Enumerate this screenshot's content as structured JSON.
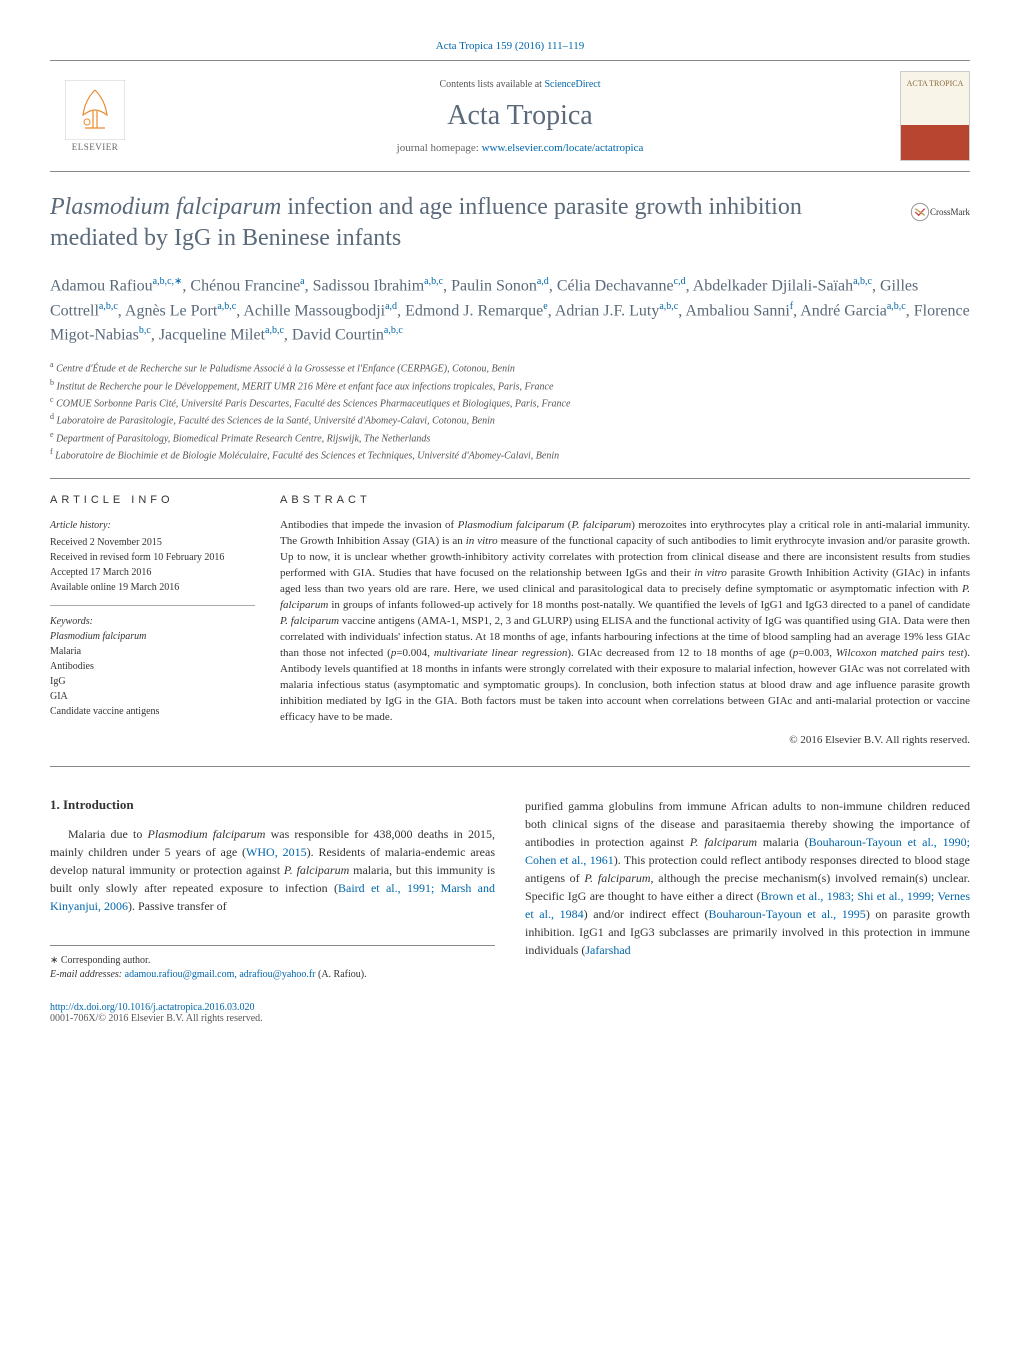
{
  "journal_ref": "Acta Tropica 159 (2016) 111–119",
  "header": {
    "contents_prefix": "Contents lists available at ",
    "contents_link": "ScienceDirect",
    "journal_name": "Acta Tropica",
    "homepage_prefix": "journal homepage: ",
    "homepage_url": "www.elsevier.com/locate/actatropica",
    "publisher": "ELSEVIER",
    "cover_title": "ACTA TROPICA"
  },
  "crossmark": "CrossMark",
  "title_html": "<span class='italic'>Plasmodium falciparum</span> infection and age influence parasite growth inhibition mediated by IgG in Beninese infants",
  "authors_html": "Adamou Rafiou<span class='sup'>a,b,c,∗</span>, Chénou Francine<span class='sup'>a</span>, Sadissou Ibrahim<span class='sup'>a,b,c</span>, Paulin Sonon<span class='sup'>a,d</span>, Célia Dechavanne<span class='sup'>c,d</span>, Abdelkader Djilali-Saïah<span class='sup'>a,b,c</span>, Gilles Cottrell<span class='sup'>a,b,c</span>, Agnès Le Port<span class='sup'>a,b,c</span>, Achille Massougbodji<span class='sup'>a,d</span>, Edmond J. Remarque<span class='sup'>e</span>, Adrian J.F. Luty<span class='sup'>a,b,c</span>, Ambaliou Sanni<span class='sup'>f</span>, André Garcia<span class='sup'>a,b,c</span>, Florence Migot-Nabias<span class='sup'>b,c</span>, Jacqueline Milet<span class='sup'>a,b,c</span>, David Courtin<span class='sup'>a,b,c</span>",
  "affiliations": [
    {
      "sup": "a",
      "text": "Centre d'Étude et de Recherche sur le Paludisme Associé à la Grossesse et l'Enfance (CERPAGE), Cotonou, Benin"
    },
    {
      "sup": "b",
      "text": "Institut de Recherche pour le Développement, MERIT UMR 216 Mère et enfant face aux infections tropicales, Paris, France"
    },
    {
      "sup": "c",
      "text": "COMUE Sorbonne Paris Cité, Université Paris Descartes, Faculté des Sciences Pharmaceutiques et Biologiques, Paris, France"
    },
    {
      "sup": "d",
      "text": "Laboratoire de Parasitologie, Faculté des Sciences de la Santé, Université d'Abomey-Calavi, Cotonou, Benin"
    },
    {
      "sup": "e",
      "text": "Department of Parasitology, Biomedical Primate Research Centre, Rijswijk, The Netherlands"
    },
    {
      "sup": "f",
      "text": "Laboratoire de Biochimie et de Biologie Moléculaire, Faculté des Sciences et Techniques, Université d'Abomey-Calavi, Benin"
    }
  ],
  "article_info": {
    "heading": "article info",
    "history_label": "Article history:",
    "history": [
      "Received 2 November 2015",
      "Received in revised form 10 February 2016",
      "Accepted 17 March 2016",
      "Available online 19 March 2016"
    ],
    "keywords_label": "Keywords:",
    "keywords": [
      "Plasmodium falciparum",
      "Malaria",
      "Antibodies",
      "IgG",
      "GIA",
      "Candidate vaccine antigens"
    ]
  },
  "abstract": {
    "heading": "abstract",
    "text_html": "Antibodies that impede the invasion of <span class='italic'>Plasmodium falciparum</span> (<span class='italic'>P. falciparum</span>) merozoites into erythrocytes play a critical role in anti-malarial immunity. The Growth Inhibition Assay (GIA) is an <span class='italic'>in vitro</span> measure of the functional capacity of such antibodies to limit erythrocyte invasion and/or parasite growth. Up to now, it is unclear whether growth-inhibitory activity correlates with protection from clinical disease and there are inconsistent results from studies performed with GIA. Studies that have focused on the relationship between IgGs and their <span class='italic'>in vitro</span> parasite Growth Inhibition Activity (GIAc) in infants aged less than two years old are rare. Here, we used clinical and parasitological data to precisely define symptomatic or asymptomatic infection with <span class='italic'>P. falciparum</span> in groups of infants followed-up actively for 18 months post-natally. We quantified the levels of IgG1 and IgG3 directed to a panel of candidate <span class='italic'>P. falciparum</span> vaccine antigens (AMA-1, MSP1, 2, 3 and GLURP) using ELISA and the functional activity of IgG was quantified using GIA. Data were then correlated with individuals' infection status. At 18 months of age, infants harbouring infections at the time of blood sampling had an average 19% less GIAc than those not infected (<span class='italic'>p</span>=0.004, <span class='italic'>multivariate linear regression</span>). GIAc decreased from 12 to 18 months of age (<span class='italic'>p</span>=0.003, <span class='italic'>Wilcoxon matched pairs test</span>). Antibody levels quantified at 18 months in infants were strongly correlated with their exposure to malarial infection, however GIAc was not correlated with malaria infectious status (asymptomatic and symptomatic groups). In conclusion, both infection status at blood draw and age influence parasite growth inhibition mediated by IgG in the GIA. Both factors must be taken into account when correlations between GIAc and anti-malarial protection or vaccine efficacy have to be made.",
    "copyright": "© 2016 Elsevier B.V. All rights reserved."
  },
  "body": {
    "section_heading": "1.  Introduction",
    "col1_html": "Malaria due to <span class='italic'>Plasmodium falciparum</span> was responsible for 438,000 deaths in 2015, mainly children under 5 years of age (<a>WHO, 2015</a>). Residents of malaria-endemic areas develop natural immunity or protection against <span class='italic'>P. falciparum</span> malaria, but this immunity is built only slowly after repeated exposure to infection (<a>Baird et al., 1991; Marsh and Kinyanjui, 2006</a>). Passive transfer of",
    "col2_html": "purified gamma globulins from immune African adults to non-immune children reduced both clinical signs of the disease and parasitaemia thereby showing the importance of antibodies in protection against <span class='italic'>P. falciparum</span> malaria (<a>Bouharoun-Tayoun et al., 1990; Cohen et al., 1961</a>). This protection could reflect antibody responses directed to blood stage antigens of <span class='italic'>P. falciparum</span>, although the precise mechanism(s) involved remain(s) unclear. Specific IgG are thought to have either a direct (<a>Brown et al., 1983; Shi et al., 1999; Vernes et al., 1984</a>) and/or indirect effect (<a>Bouharoun-Tayoun et al., 1995</a>) on parasite growth inhibition. IgG1 and IgG3 subclasses are primarily involved in this protection in immune individuals (<a>Jafarshad"
  },
  "footnote": {
    "corr": "∗ Corresponding author.",
    "email_label": "E-mail addresses: ",
    "emails": "adamou.rafiou@gmail.com, adrafiou@yahoo.fr",
    "email_attr": " (A. Rafiou)."
  },
  "doi": {
    "url": "http://dx.doi.org/10.1016/j.actatropica.2016.03.020",
    "issn": "0001-706X/© 2016 Elsevier B.V. All rights reserved."
  },
  "colors": {
    "link": "#0066aa",
    "heading": "#5a6a7a",
    "text": "#333333",
    "muted": "#555555",
    "border": "#888888"
  }
}
